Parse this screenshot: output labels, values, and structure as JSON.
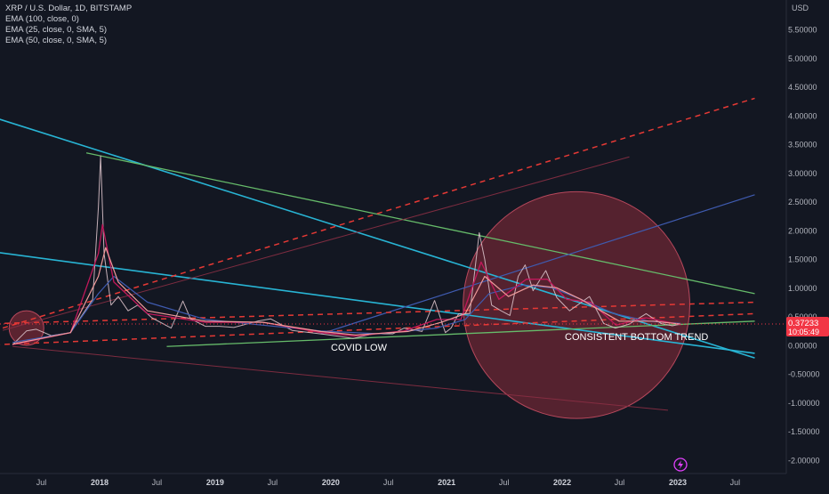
{
  "header": {
    "symbol_line": "XRP / U.S. Dollar, 1D, BITSTAMP",
    "indicators": [
      "EMA (100, close, 0)",
      "EMA (25, close, 0, SMA, 5)",
      "EMA (50, close, 0, SMA, 5)"
    ]
  },
  "price_label": {
    "price": "0.37233",
    "countdown": "10:05:49",
    "color": "#f23645"
  },
  "annotations": {
    "covid_low": "COVID LOW",
    "bottom_trend": "CONSISTENT BOTTOM TREND"
  },
  "colors": {
    "background": "#131722",
    "price": "#d8c0c8",
    "ema100": "#3f5bb0",
    "ema25": "#c2185b",
    "ema50": "#ef9a9a",
    "trend_cyan": "#28b4d4",
    "trend_green": "#66bb6a",
    "trend_red_dashed": "#e53935",
    "circle_fill": "#8c2b3a"
  },
  "chart_data": {
    "type": "line",
    "title": "XRP / U.S. Dollar, 1D, BITSTAMP",
    "xlabel": "",
    "ylabel": "USD",
    "ylim": [
      -2.0,
      6.0
    ],
    "y_ticks": [
      "5.50000",
      "5.00000",
      "4.50000",
      "4.00000",
      "3.50000",
      "3.00000",
      "2.50000",
      "2.00000",
      "1.50000",
      "1.00000",
      "0.50000",
      "0.00000",
      "-0.50000",
      "-1.00000",
      "-1.50000",
      "-2.00000"
    ],
    "x_ticks": [
      "Jul",
      "2018",
      "Jul",
      "2019",
      "Jul",
      "2020",
      "Jul",
      "2021",
      "Jul",
      "2022",
      "Jul",
      "2023",
      "Jul"
    ],
    "grid": false,
    "series": [
      {
        "name": "XRP / U.S. Dollar",
        "x": [
          "2017-04-01",
          "2017-05-15",
          "2017-06-15",
          "2017-08-01",
          "2017-10-01",
          "2017-12-10",
          "2017-12-28",
          "2018-01-04",
          "2018-01-15",
          "2018-02-06",
          "2018-03-01",
          "2018-04-01",
          "2018-05-01",
          "2018-06-15",
          "2018-08-15",
          "2018-09-21",
          "2018-10-15",
          "2018-12-01",
          "2019-01-15",
          "2019-03-01",
          "2019-05-15",
          "2019-06-25",
          "2019-09-01",
          "2019-12-15",
          "2020-03-12",
          "2020-05-15",
          "2020-07-15",
          "2020-08-20",
          "2020-10-15",
          "2020-11-24",
          "2020-12-28",
          "2021-01-15",
          "2021-02-08",
          "2021-03-15",
          "2021-04-14",
          "2021-05-01",
          "2021-05-23",
          "2021-06-22",
          "2021-07-20",
          "2021-08-15",
          "2021-09-06",
          "2021-10-01",
          "2021-11-10",
          "2021-12-15",
          "2022-01-24",
          "2022-03-28",
          "2022-05-12",
          "2022-06-18",
          "2022-08-01",
          "2022-09-23",
          "2022-11-09",
          "2022-12-15",
          "2023-01-10"
        ],
        "y": [
          0.007,
          0.25,
          0.28,
          0.17,
          0.22,
          0.8,
          2.4,
          3.3,
          1.6,
          0.7,
          0.85,
          0.6,
          0.7,
          0.48,
          0.3,
          0.77,
          0.46,
          0.33,
          0.33,
          0.31,
          0.42,
          0.46,
          0.26,
          0.19,
          0.12,
          0.2,
          0.2,
          0.3,
          0.24,
          0.78,
          0.22,
          0.3,
          0.55,
          0.55,
          1.96,
          1.5,
          0.7,
          0.6,
          0.52,
          1.2,
          1.4,
          0.95,
          1.3,
          0.83,
          0.6,
          0.85,
          0.38,
          0.3,
          0.37,
          0.55,
          0.38,
          0.34,
          0.37
        ]
      },
      {
        "name": "EMA (100, close, 0)",
        "x": [
          "2017-04-01",
          "2017-10-01",
          "2017-12-28",
          "2018-02-15",
          "2018-06-01",
          "2018-12-01",
          "2019-06-01",
          "2019-12-01",
          "2020-06-01",
          "2020-12-01",
          "2021-03-01",
          "2021-05-15",
          "2021-09-01",
          "2021-12-01",
          "2022-03-01",
          "2022-06-15",
          "2022-10-01",
          "2023-01-10"
        ],
        "y": [
          0.05,
          0.22,
          0.9,
          1.2,
          0.75,
          0.45,
          0.35,
          0.25,
          0.2,
          0.3,
          0.45,
          0.9,
          1.05,
          1.0,
          0.8,
          0.55,
          0.42,
          0.38
        ]
      },
      {
        "name": "EMA (25, close, 0, SMA, 5)",
        "x": [
          "2017-04-01",
          "2017-10-01",
          "2017-12-28",
          "2018-01-10",
          "2018-02-15",
          "2018-06-01",
          "2018-12-01",
          "2019-06-01",
          "2019-12-01",
          "2020-03-15",
          "2020-08-20",
          "2020-12-01",
          "2021-02-15",
          "2021-04-20",
          "2021-06-15",
          "2021-09-10",
          "2021-11-15",
          "2022-01-15",
          "2022-04-01",
          "2022-06-20",
          "2022-09-23",
          "2023-01-10"
        ],
        "y": [
          0.01,
          0.22,
          1.6,
          2.1,
          1.1,
          0.55,
          0.4,
          0.4,
          0.22,
          0.16,
          0.25,
          0.45,
          0.45,
          1.45,
          0.8,
          1.15,
          1.15,
          0.8,
          0.75,
          0.35,
          0.48,
          0.36
        ]
      },
      {
        "name": "EMA (50, close, 0, SMA, 5)",
        "x": [
          "2017-04-01",
          "2017-10-01",
          "2017-12-28",
          "2018-01-20",
          "2018-03-01",
          "2018-06-01",
          "2018-12-01",
          "2019-06-01",
          "2019-12-01",
          "2020-03-20",
          "2020-09-01",
          "2020-12-15",
          "2021-03-01",
          "2021-05-01",
          "2021-07-15",
          "2021-10-01",
          "2021-12-15",
          "2022-03-01",
          "2022-06-30",
          "2022-10-15",
          "2023-01-10"
        ],
        "y": [
          0.02,
          0.22,
          1.2,
          1.7,
          1.1,
          0.6,
          0.42,
          0.4,
          0.24,
          0.18,
          0.24,
          0.4,
          0.55,
          1.2,
          0.85,
          1.05,
          1.0,
          0.8,
          0.42,
          0.42,
          0.37
        ]
      }
    ],
    "trendlines": [
      {
        "style": "cyan",
        "x": [
          "2016-04-01",
          "2023-09-01"
        ],
        "y": [
          4.5,
          -0.22
        ]
      },
      {
        "style": "cyan",
        "x": [
          "2016-04-01",
          "2023-09-01"
        ],
        "y": [
          1.85,
          -0.14
        ]
      },
      {
        "style": "green",
        "x": [
          "2017-11-20",
          "2023-09-01"
        ],
        "y": [
          3.35,
          0.9
        ]
      },
      {
        "style": "green",
        "x": [
          "2018-08-01",
          "2023-09-01"
        ],
        "y": [
          -0.02,
          0.42
        ]
      },
      {
        "style": "blue",
        "x": [
          "2019-12-01",
          "2023-09-01"
        ],
        "y": [
          0.2,
          2.62
        ]
      },
      {
        "style": "dashed",
        "x": [
          "2016-04-01",
          "2023-09-01"
        ],
        "y": [
          0.33,
          0.75
        ]
      },
      {
        "style": "dashed",
        "x": [
          "2016-04-01",
          "2023-09-01"
        ],
        "y": [
          -0.06,
          0.55
        ]
      },
      {
        "style": "dashed",
        "x": [
          "2017-03-01",
          "2023-09-01"
        ],
        "y": [
          0.3,
          4.3
        ]
      },
      {
        "style": "faint",
        "x": [
          "2017-03-01",
          "2022-08-01"
        ],
        "y": [
          0.26,
          3.28
        ]
      },
      {
        "style": "faint",
        "x": [
          "2017-04-01",
          "2022-12-01"
        ],
        "y": [
          -0.02,
          -1.13
        ]
      }
    ],
    "circles": [
      {
        "center": [
          "2022-02-15",
          0.7
        ],
        "radius_years": 0.98
      },
      {
        "center": [
          "2017-05-15",
          0.3
        ],
        "radius_years": 0.15
      }
    ]
  }
}
